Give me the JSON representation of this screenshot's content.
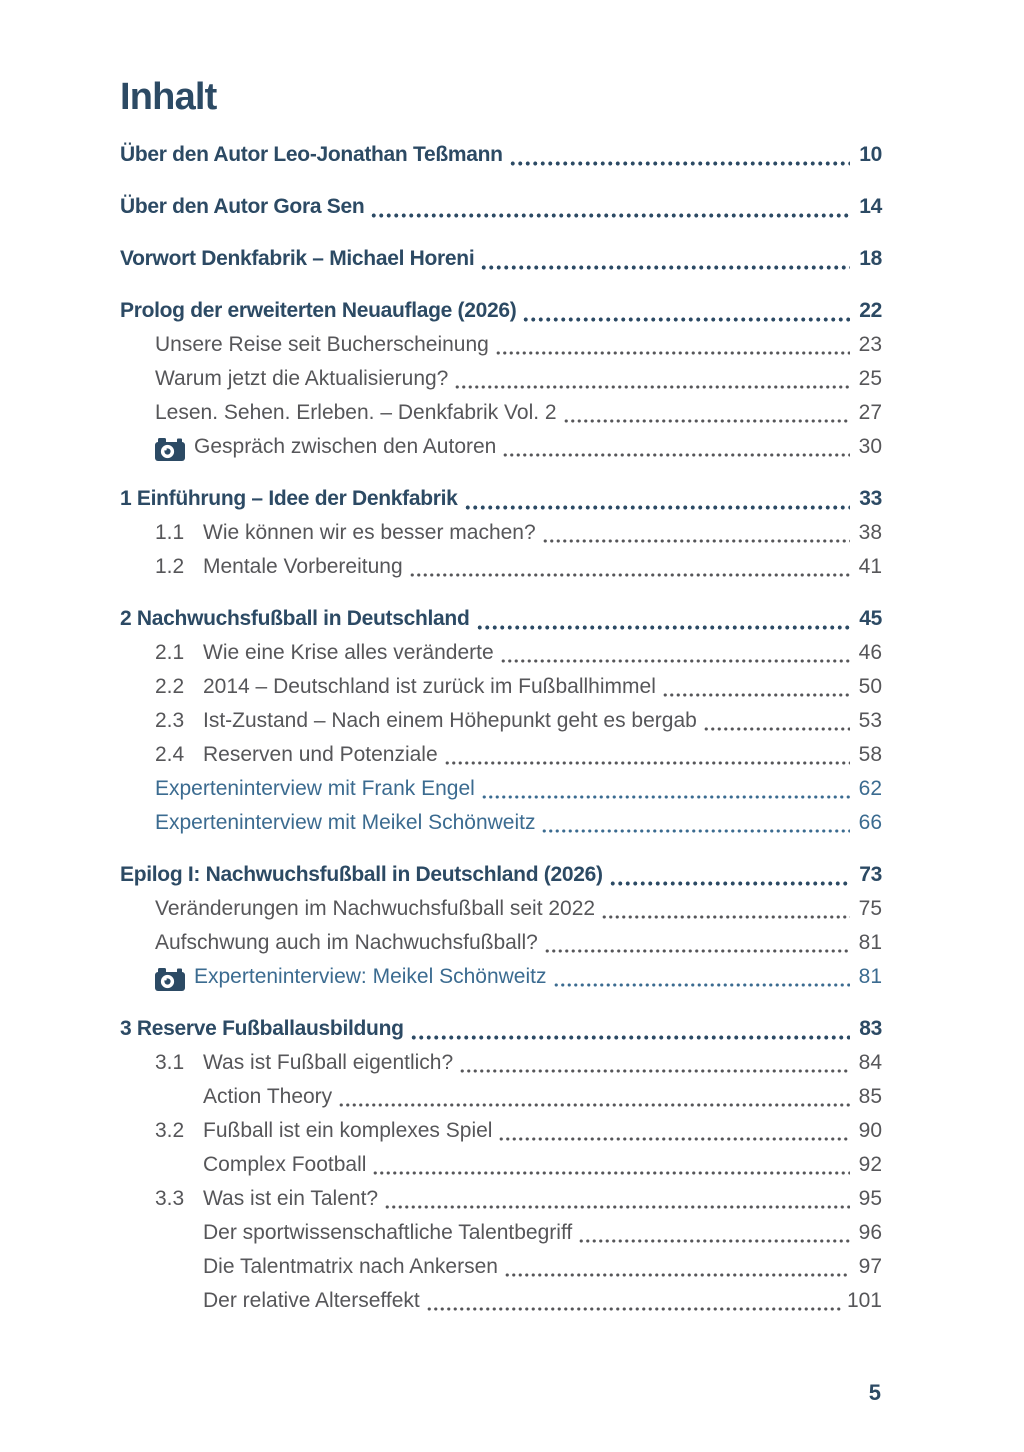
{
  "page": {
    "title": "Inhalt",
    "footer_page_number": "5",
    "colors": {
      "heading_navy": "#2c4a64",
      "body_gray": "#565659",
      "accent_blue": "#3b6b90",
      "background": "#ffffff"
    }
  },
  "toc": {
    "entries": [
      {
        "type": "chapter",
        "label": "Über den Autor Leo-Jonathan Teßmann",
        "page": "10"
      },
      {
        "type": "chapter",
        "label": "Über den Autor Gora Sen",
        "page": "14"
      },
      {
        "type": "chapter",
        "label": "Vorwort Denkfabrik – Michael Horeni",
        "page": "18"
      },
      {
        "type": "chapter",
        "label": "Prolog der erweiterten Neuauflage (2026)",
        "page": "22"
      },
      {
        "type": "section",
        "label": "Unsere Reise seit Bucherscheinung",
        "page": "23"
      },
      {
        "type": "section",
        "label": "Warum jetzt die Aktualisierung?",
        "page": "25"
      },
      {
        "type": "section",
        "label": "Lesen. Sehen. Erleben. – Denkfabrik Vol. 2",
        "page": "27"
      },
      {
        "type": "section",
        "icon": "camera-icon",
        "label": "Gespräch zwischen den Autoren",
        "page": "30"
      },
      {
        "type": "chapter",
        "label": "1 Einführung – Idee der Denkfabrik",
        "page": "33"
      },
      {
        "type": "numbered",
        "num": "1.1",
        "label": "Wie können wir es besser machen?",
        "page": "38"
      },
      {
        "type": "numbered",
        "num": "1.2",
        "label": "Mentale Vorbereitung",
        "page": "41"
      },
      {
        "type": "chapter",
        "label": "2 Nachwuchsfußball in Deutschland",
        "page": "45"
      },
      {
        "type": "numbered",
        "num": "2.1",
        "label": "Wie eine Krise alles veränderte",
        "page": "46"
      },
      {
        "type": "numbered",
        "num": "2.2",
        "label": "2014 – Deutschland ist zurück im Fußballhimmel",
        "page": "50"
      },
      {
        "type": "numbered",
        "num": "2.3",
        "label": "Ist-Zustand – Nach einem Höhepunkt geht es bergab",
        "page": "53"
      },
      {
        "type": "numbered",
        "num": "2.4",
        "label": "Reserven und Potenziale",
        "page": "58"
      },
      {
        "type": "section",
        "color": "blue",
        "label": "Experteninterview mit Frank Engel",
        "page": "62"
      },
      {
        "type": "section",
        "color": "blue",
        "label": "Experteninterview mit Meikel Schönweitz",
        "page": "66"
      },
      {
        "type": "chapter",
        "label": "Epilog I: Nachwuchsfußball in Deutschland (2026)",
        "page": "73"
      },
      {
        "type": "section",
        "label": "Veränderungen im Nachwuchsfußball seit 2022",
        "page": "75"
      },
      {
        "type": "section",
        "label": "Aufschwung auch im Nachwuchsfußball?",
        "page": "81"
      },
      {
        "type": "section",
        "color": "blue",
        "icon": "camera-icon",
        "label": "Experteninterview: Meikel Schönweitz",
        "page": "81"
      },
      {
        "type": "chapter",
        "label": "3 Reserve Fußballausbildung",
        "page": "83"
      },
      {
        "type": "numbered",
        "num": "3.1",
        "label": "Was ist Fußball eigentlich?",
        "page": "84"
      },
      {
        "type": "subsection",
        "label": "Action Theory",
        "page": "85"
      },
      {
        "type": "numbered",
        "num": "3.2",
        "label": "Fußball ist ein komplexes Spiel",
        "page": "90"
      },
      {
        "type": "subsection",
        "label": "Complex Football",
        "page": "92"
      },
      {
        "type": "numbered",
        "num": "3.3",
        "label": "Was ist ein Talent?",
        "page": "95"
      },
      {
        "type": "subsection",
        "label": "Der sportwissenschaftliche Talentbegriff",
        "page": "96"
      },
      {
        "type": "subsection",
        "label": "Die Talentmatrix nach Ankersen",
        "page": "97"
      },
      {
        "type": "subsection",
        "label": "Der relative Alterseffekt",
        "page": "101"
      }
    ]
  }
}
